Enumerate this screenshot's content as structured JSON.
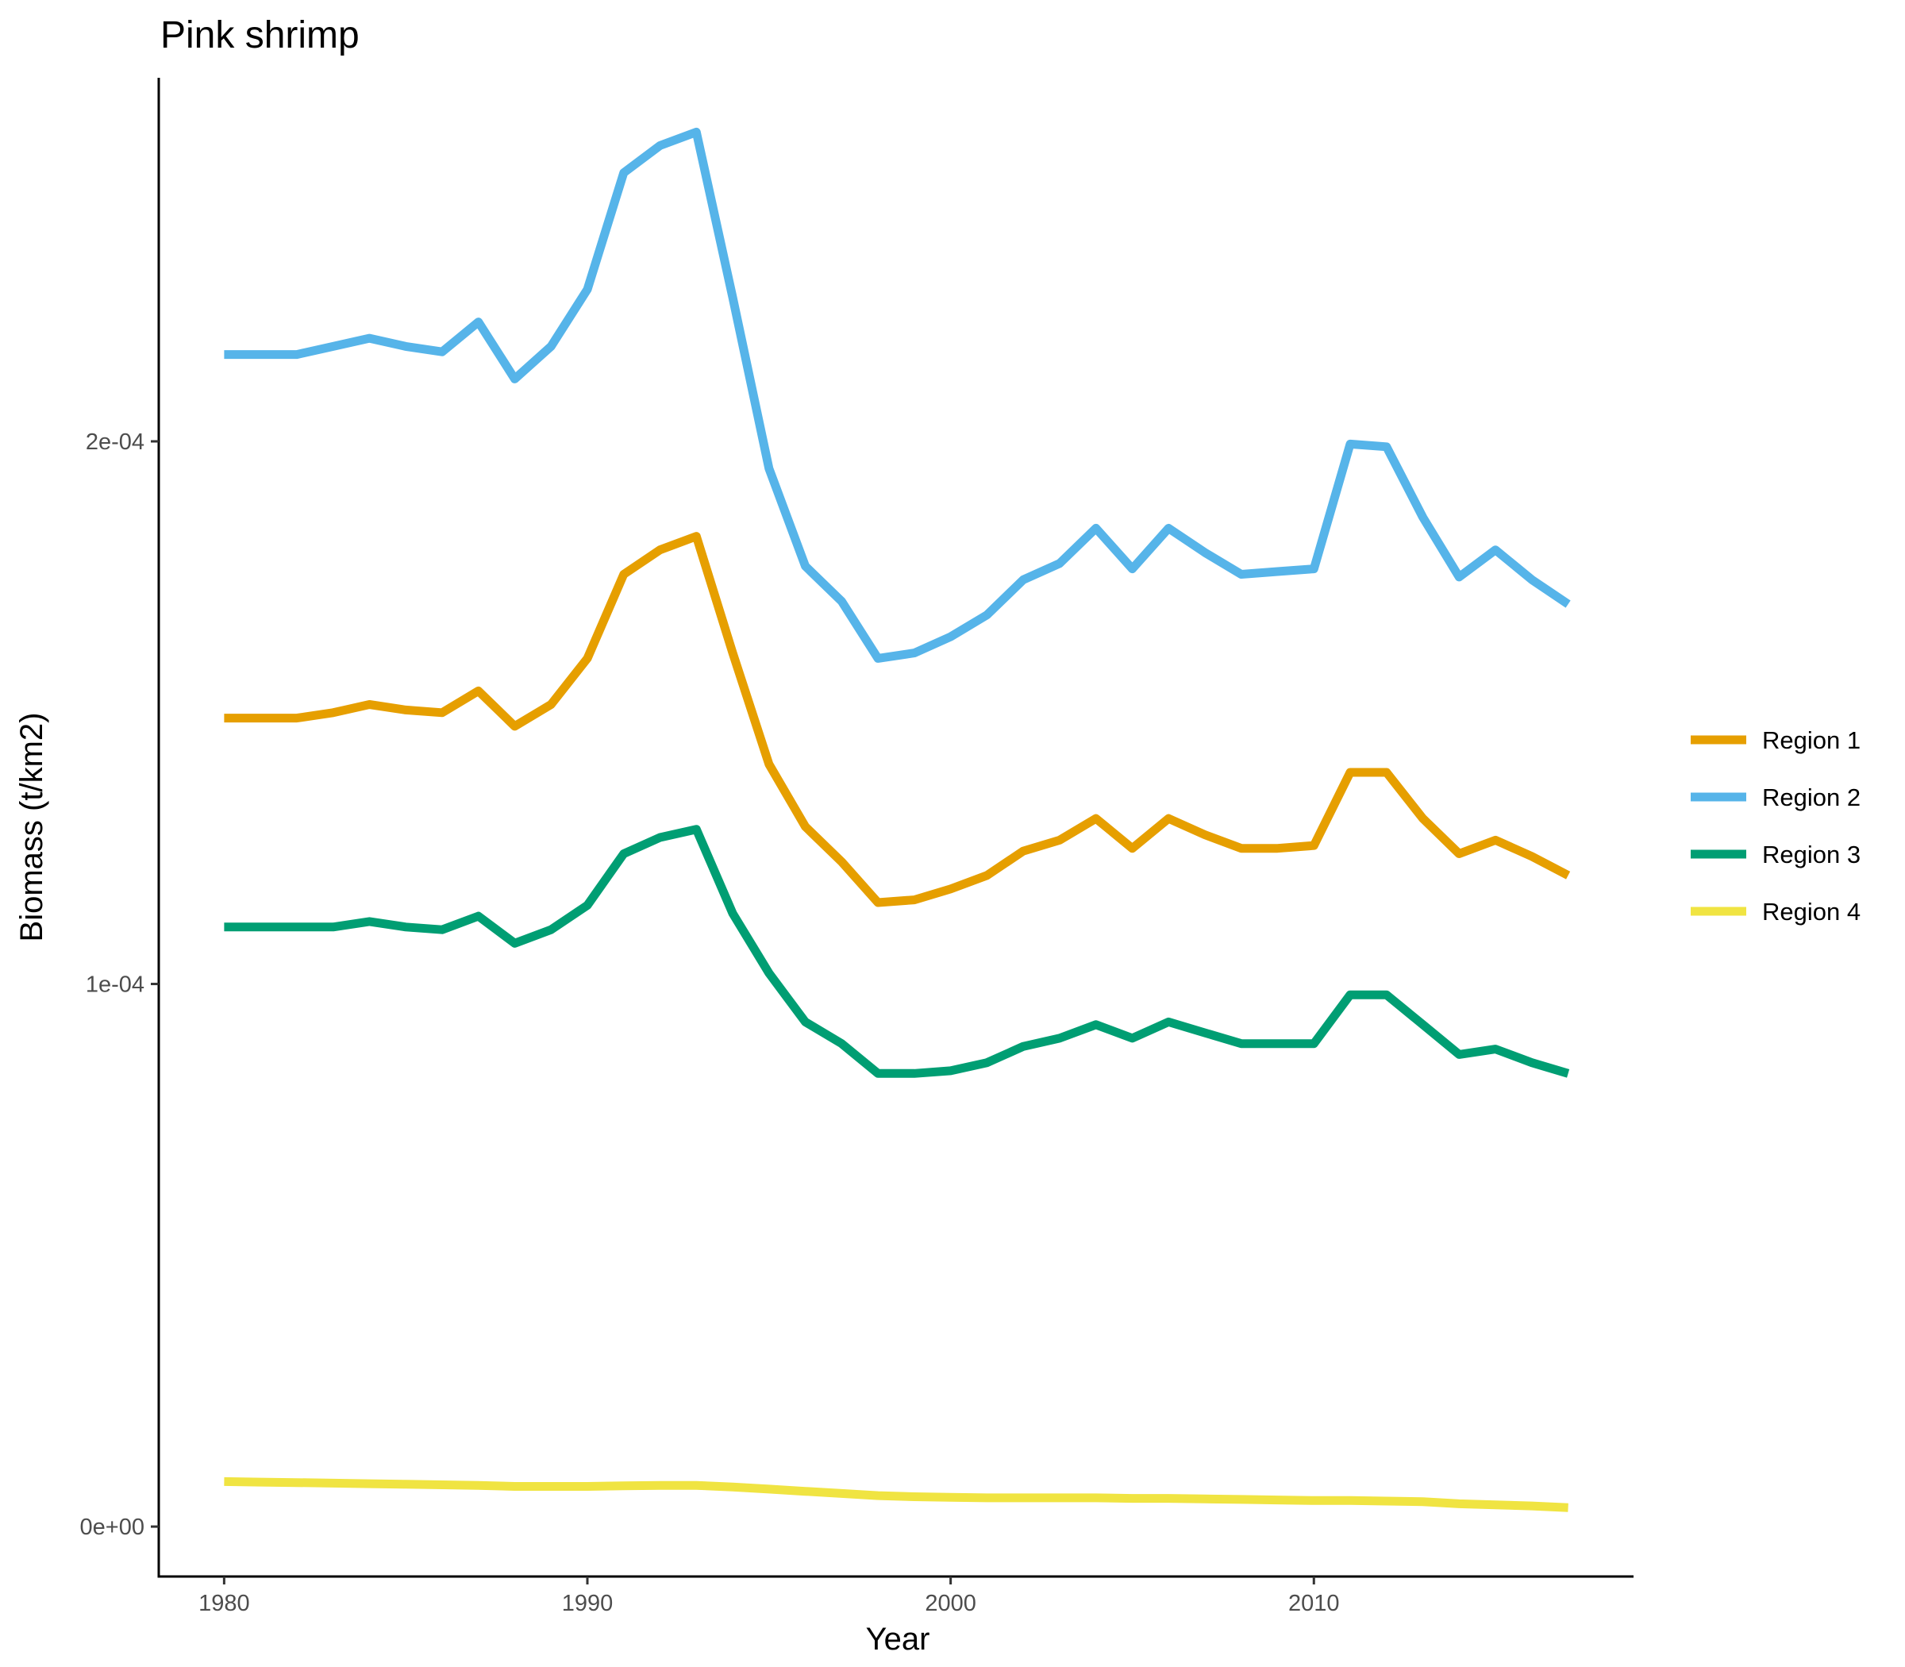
{
  "chart_data": {
    "type": "line",
    "title": "Pink shrimp",
    "xlabel": "Year",
    "ylabel": "Biomass (t/km2)",
    "xlim": [
      1978.2,
      2018.8
    ],
    "ylim": [
      -9.2e-06,
      0.000267
    ],
    "x_ticks": [
      1980,
      1990,
      2000,
      2010
    ],
    "x_tick_labels": [
      "1980",
      "1990",
      "2000",
      "2010"
    ],
    "y_ticks": [
      0,
      0.0001,
      0.0002
    ],
    "y_tick_labels": [
      "0e+00",
      "1e-04",
      "2e-04"
    ],
    "grid": false,
    "legend_position": "right",
    "x": [
      1980,
      1981,
      1982,
      1983,
      1984,
      1985,
      1986,
      1987,
      1988,
      1989,
      1990,
      1991,
      1992,
      1993,
      1994,
      1995,
      1996,
      1997,
      1998,
      1999,
      2000,
      2001,
      2002,
      2003,
      2004,
      2005,
      2006,
      2007,
      2008,
      2009,
      2010,
      2011,
      2012,
      2013,
      2014,
      2015,
      2016,
      2017
    ],
    "series": [
      {
        "name": "Region 1",
        "color": "#E69F00",
        "values": [
          0.000149,
          0.000149,
          0.000149,
          0.00015,
          0.0001515,
          0.0001505,
          0.00015,
          0.000154,
          0.0001475,
          0.0001515,
          0.00016,
          0.0001755,
          0.00018,
          0.0001825,
          0.000161,
          0.0001405,
          0.000129,
          0.0001225,
          0.000115,
          0.0001155,
          0.0001175,
          0.00012,
          0.0001245,
          0.0001265,
          0.0001305,
          0.000125,
          0.0001305,
          0.0001275,
          0.000125,
          0.000125,
          0.0001255,
          0.000139,
          0.000139,
          0.0001305,
          0.000124,
          0.0001265,
          0.0001235,
          0.00012
        ]
      },
      {
        "name": "Region 2",
        "color": "#56B4E9",
        "values": [
          0.000216,
          0.000216,
          0.000216,
          0.0002175,
          0.000219,
          0.0002175,
          0.0002165,
          0.000222,
          0.0002115,
          0.0002175,
          0.000228,
          0.0002495,
          0.0002545,
          0.000257,
          0.0002265,
          0.000195,
          0.000177,
          0.0001705,
          0.00016,
          0.000161,
          0.000164,
          0.000168,
          0.0001745,
          0.0001775,
          0.000184,
          0.0001765,
          0.000184,
          0.0001795,
          0.0001755,
          0.000176,
          0.0001765,
          0.0001995,
          0.000199,
          0.000186,
          0.000175,
          0.00018,
          0.0001745,
          0.00017
        ]
      },
      {
        "name": "Region 3",
        "color": "#009E73",
        "values": [
          0.0001105,
          0.0001105,
          0.0001105,
          0.0001105,
          0.0001115,
          0.0001105,
          0.00011,
          0.0001125,
          0.0001075,
          0.00011,
          0.0001145,
          0.000124,
          0.000127,
          0.0001285,
          0.000113,
          0.000102,
          9.3e-05,
          8.9e-05,
          8.35e-05,
          8.35e-05,
          8.4e-05,
          8.55e-05,
          8.85e-05,
          9e-05,
          9.25e-05,
          9e-05,
          9.3e-05,
          9.1e-05,
          8.9e-05,
          8.9e-05,
          8.9e-05,
          9.8e-05,
          9.8e-05,
          9.25e-05,
          8.7e-05,
          8.8e-05,
          8.55e-05,
          8.35e-05
        ]
      },
      {
        "name": "Region 4",
        "color": "#F0E442",
        "values": [
          8.3e-06,
          8.2e-06,
          8.1e-06,
          8e-06,
          7.9e-06,
          7.8e-06,
          7.7e-06,
          7.6e-06,
          7.4e-06,
          7.4e-06,
          7.4e-06,
          7.5e-06,
          7.6e-06,
          7.6e-06,
          7.3e-06,
          6.9e-06,
          6.5e-06,
          6.1e-06,
          5.7e-06,
          5.5e-06,
          5.4e-06,
          5.3e-06,
          5.3e-06,
          5.3e-06,
          5.3e-06,
          5.2e-06,
          5.2e-06,
          5.1e-06,
          5e-06,
          4.9e-06,
          4.8e-06,
          4.8e-06,
          4.7e-06,
          4.6e-06,
          4.2e-06,
          4e-06,
          3.8e-06,
          3.5e-06
        ]
      }
    ]
  }
}
